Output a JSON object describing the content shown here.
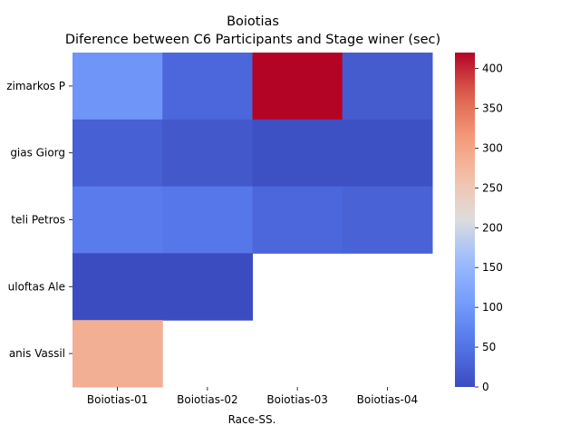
{
  "chart_data": {
    "type": "heatmap",
    "title": "Boiotias",
    "subtitle": "Diference between C6 Participants and Stage winer (sec)",
    "xlabel": "Race-SS.",
    "ylabel": "",
    "x_categories": [
      "Boiotias-01",
      "Boiotias-02",
      "Boiotias-03",
      "Boiotias-04"
    ],
    "y_categories": [
      "zimarkos P",
      "gias Giorg",
      "teli Petros",
      "uloftas Ale",
      "anis Vassil"
    ],
    "values": [
      [
        95,
        35,
        420,
        20
      ],
      [
        25,
        15,
        5,
        5
      ],
      [
        60,
        55,
        35,
        30
      ],
      [
        0,
        0,
        null,
        null
      ],
      [
        285,
        null,
        null,
        null
      ]
    ],
    "colorbar": {
      "min": 0,
      "max": 420,
      "ticks": [
        0,
        50,
        100,
        150,
        200,
        250,
        300,
        350,
        400
      ],
      "colormap": "coolwarm"
    },
    "grid": false
  }
}
